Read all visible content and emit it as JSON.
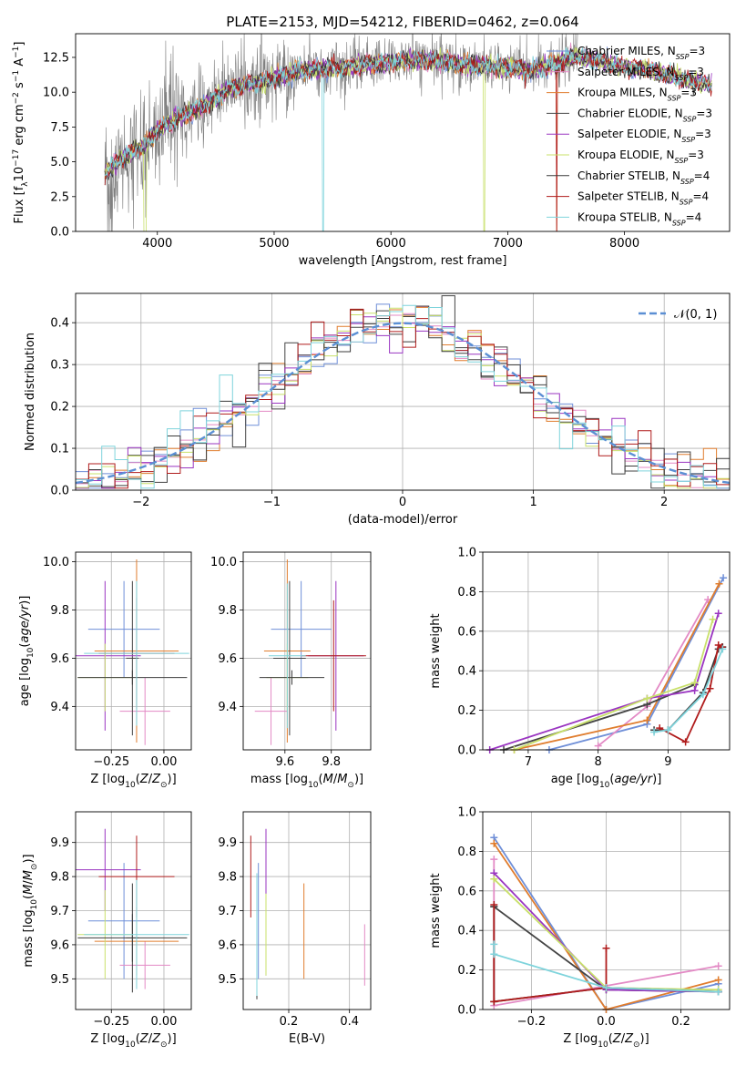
{
  "title": "PLATE=2153, MJD=54212, FIBERID=0462, z=0.064",
  "colors": {
    "ChabrierMILES": "#6f8fd8",
    "SalpeterMILES": "#e38ac5",
    "KroupaMILES": "#e07d2e",
    "ChabrierELODIE": "#444444",
    "SalpeterELODIE": "#9a35c1",
    "KroupaELODIE": "#c8e06a",
    "ChabrierSTELIB": "#3b3b3b",
    "SalpeterSTELIB": "#b01c1c",
    "KroupaSTELIB": "#7fd4dc",
    "data": "#808080",
    "grid": "#b0b0b0",
    "gauss": "#5b8fd4"
  },
  "labels": {
    "spec_xlabel": "wavelength [Angstrom, rest frame]",
    "spec_ylabel": "Flux [f",
    "hist_xlabel": "(data-model)/error",
    "hist_ylabel": "Normed distribution",
    "gauss_legend": "𝒩(0, 1)",
    "age_ylabel": "age  [log",
    "z_xlabel": "Z [log",
    "mass_xlabel": "mass [log",
    "mw_ylabel": "mass weight",
    "age_xlabel": "age  [log",
    "mass_ylabel": "mass [log",
    "ebv_xlabel": "E(B-V)"
  },
  "legend": [
    {
      "name": "Chabrier MILES",
      "nssp": "3",
      "key": "ChabrierMILES"
    },
    {
      "name": "Salpeter MILES",
      "nssp": "3",
      "key": "SalpeterMILES"
    },
    {
      "name": "Kroupa MILES",
      "nssp": "3",
      "key": "KroupaMILES"
    },
    {
      "name": "Chabrier ELODIE",
      "nssp": "3",
      "key": "ChabrierELODIE"
    },
    {
      "name": "Salpeter ELODIE",
      "nssp": "3",
      "key": "SalpeterELODIE"
    },
    {
      "name": "Kroupa ELODIE",
      "nssp": "3",
      "key": "KroupaELODIE"
    },
    {
      "name": "Chabrier STELIB",
      "nssp": "4",
      "key": "ChabrierSTELIB"
    },
    {
      "name": "Salpeter STELIB",
      "nssp": "4",
      "key": "SalpeterSTELIB"
    },
    {
      "name": "Kroupa STELIB",
      "nssp": "4",
      "key": "KroupaSTELIB"
    }
  ],
  "chart_data": [
    {
      "id": "spectrum",
      "type": "line",
      "xlim": [
        3300,
        8900
      ],
      "ylim": [
        0,
        14.2
      ],
      "xticks": [
        4000,
        5000,
        6000,
        7000,
        8000
      ],
      "yticks": [
        0.0,
        2.5,
        5.0,
        7.5,
        10.0,
        12.5
      ],
      "continuum": [
        [
          3550,
          4.2
        ],
        [
          3700,
          5.3
        ],
        [
          3900,
          6.2
        ],
        [
          4000,
          7.3
        ],
        [
          4200,
          8.2
        ],
        [
          4400,
          9.0
        ],
        [
          4600,
          10.2
        ],
        [
          4800,
          10.6
        ],
        [
          5000,
          11.0
        ],
        [
          5200,
          11.5
        ],
        [
          5400,
          11.7
        ],
        [
          5600,
          11.7
        ],
        [
          5800,
          12.0
        ],
        [
          6000,
          12.2
        ],
        [
          6200,
          12.3
        ],
        [
          6400,
          12.2
        ],
        [
          6600,
          12.0
        ],
        [
          6800,
          11.9
        ],
        [
          7000,
          11.8
        ],
        [
          7200,
          11.6
        ],
        [
          7400,
          12.0
        ],
        [
          7600,
          12.6
        ],
        [
          7800,
          12.2
        ],
        [
          8000,
          11.8
        ],
        [
          8200,
          11.6
        ],
        [
          8400,
          11.2
        ],
        [
          8600,
          10.8
        ],
        [
          8750,
          10.5
        ]
      ],
      "data_range": [
        3550,
        7600
      ],
      "dips": [
        5420,
        6800,
        7420
      ]
    },
    {
      "id": "residuals",
      "type": "histogram",
      "xlim": [
        -2.5,
        2.5
      ],
      "ylim": [
        0,
        0.47
      ],
      "xticks": [
        -2,
        -1,
        0,
        1,
        2
      ],
      "yticks": [
        0.0,
        0.1,
        0.2,
        0.3,
        0.4
      ],
      "bin_width": 0.1
    },
    {
      "id": "age_vs_Z",
      "type": "errorbar",
      "xlim": [
        -0.42,
        0.13
      ],
      "ylim": [
        9.22,
        10.04
      ],
      "xticks": [
        -0.25,
        0.0
      ],
      "yticks": [
        9.4,
        9.6,
        9.8,
        10.0
      ],
      "points": [
        {
          "key": "ChabrierMILES",
          "x": -0.19,
          "xerr": 0.17,
          "y": 9.72,
          "yerr": 0.2
        },
        {
          "key": "SalpeterMILES",
          "x": -0.09,
          "xerr": 0.12,
          "y": 9.38,
          "yerr": 0.14
        },
        {
          "key": "KroupaMILES",
          "x": -0.13,
          "xerr": 0.2,
          "y": 9.63,
          "yerr": 0.38
        },
        {
          "key": "ChabrierELODIE",
          "x": -0.15,
          "xerr": 0.03,
          "y": 9.6,
          "yerr": 0.32
        },
        {
          "key": "SalpeterELODIE",
          "x": -0.28,
          "xerr": 0.17,
          "y": 9.61,
          "yerr": 0.31
        },
        {
          "key": "KroupaELODIE",
          "x": -0.28,
          "xerr": 0.13,
          "y": 9.52,
          "yerr": 0.14
        },
        {
          "key": "ChabrierSTELIB",
          "x": -0.15,
          "xerr": 0.26,
          "y": 9.52,
          "yerr": 0.03
        },
        {
          "key": "SalpeterSTELIB",
          "x": -0.13,
          "xerr": 0.18,
          "y": 9.62,
          "yerr": 0.23
        },
        {
          "key": "KroupaSTELIB",
          "x": -0.13,
          "xerr": 0.25,
          "y": 9.62,
          "yerr": 0.3
        }
      ]
    },
    {
      "id": "age_vs_mass",
      "type": "errorbar",
      "xlim": [
        9.42,
        9.97
      ],
      "ylim": [
        9.22,
        10.04
      ],
      "xticks": [
        9.6,
        9.8
      ],
      "yticks": [
        9.4,
        9.6,
        9.8,
        10.0
      ],
      "points": [
        {
          "key": "ChabrierMILES",
          "x": 9.67,
          "xerr": 0.13,
          "y": 9.72,
          "yerr": 0.2
        },
        {
          "key": "SalpeterMILES",
          "x": 9.54,
          "xerr": 0.07,
          "y": 9.38,
          "yerr": 0.14
        },
        {
          "key": "KroupaMILES",
          "x": 9.61,
          "xerr": 0.1,
          "y": 9.63,
          "yerr": 0.38
        },
        {
          "key": "ChabrierELODIE",
          "x": 9.62,
          "xerr": 0.07,
          "y": 9.6,
          "yerr": 0.32
        },
        {
          "key": "SalpeterELODIE",
          "x": 9.82,
          "xerr": 0.12,
          "y": 9.61,
          "yerr": 0.31
        },
        {
          "key": "KroupaELODIE",
          "x": 9.61,
          "xerr": 0.09,
          "y": 9.52,
          "yerr": 0.14
        },
        {
          "key": "ChabrierSTELIB",
          "x": 9.63,
          "xerr": 0.14,
          "y": 9.52,
          "yerr": 0.03
        },
        {
          "key": "SalpeterSTELIB",
          "x": 9.81,
          "xerr": 0.14,
          "y": 9.61,
          "yerr": 0.23
        },
        {
          "key": "KroupaSTELIB",
          "x": 9.61,
          "xerr": 0.08,
          "y": 9.61,
          "yerr": 0.3
        }
      ]
    },
    {
      "id": "weight_vs_age",
      "type": "line",
      "xlim": [
        6.35,
        9.88
      ],
      "ylim": [
        0,
        1.0
      ],
      "xticks": [
        7,
        8,
        9
      ],
      "yticks": [
        0.0,
        0.2,
        0.4,
        0.6,
        0.8,
        1.0
      ],
      "series": [
        {
          "key": "ChabrierMILES",
          "x": [
            7.3,
            8.7,
            9.79
          ],
          "y": [
            0.0,
            0.13,
            0.87
          ]
        },
        {
          "key": "SalpeterMILES",
          "x": [
            8.0,
            8.7,
            9.57
          ],
          "y": [
            0.02,
            0.22,
            0.76
          ]
        },
        {
          "key": "KroupaMILES",
          "x": [
            6.8,
            8.7,
            9.73
          ],
          "y": [
            0.0,
            0.15,
            0.84
          ]
        },
        {
          "key": "ChabrierELODIE",
          "x": [
            6.65,
            8.7,
            9.38
          ],
          "y": [
            0.0,
            0.23,
            0.33
          ]
        },
        {
          "key": "SalpeterELODIE",
          "x": [
            6.45,
            8.7,
            9.38,
            9.72
          ],
          "y": [
            0.0,
            0.26,
            0.3,
            0.69
          ]
        },
        {
          "key": "KroupaELODIE",
          "x": [
            6.8,
            8.7,
            9.38,
            9.64
          ],
          "y": [
            0.0,
            0.26,
            0.34,
            0.66
          ]
        },
        {
          "key": "ChabrierSTELIB",
          "x": [
            8.8,
            9.0,
            9.5,
            9.72,
            9.78
          ],
          "y": [
            0.1,
            0.1,
            0.29,
            0.51,
            0.52
          ]
        },
        {
          "key": "SalpeterSTELIB",
          "x": [
            8.88,
            9.25,
            9.6,
            9.72,
            9.77
          ],
          "y": [
            0.11,
            0.04,
            0.31,
            0.53,
            0.52
          ]
        },
        {
          "key": "KroupaSTELIB",
          "x": [
            8.8,
            9.0,
            9.5,
            9.78
          ],
          "y": [
            0.09,
            0.1,
            0.28,
            0.51
          ]
        }
      ]
    },
    {
      "id": "mass_vs_Z",
      "type": "errorbar",
      "xlim": [
        -0.42,
        0.13
      ],
      "ylim": [
        9.41,
        9.99
      ],
      "xticks": [
        -0.25,
        0.0
      ],
      "yticks": [
        9.5,
        9.6,
        9.7,
        9.8,
        9.9
      ],
      "points": [
        {
          "key": "ChabrierMILES",
          "x": -0.19,
          "xerr": 0.17,
          "y": 9.67,
          "yerr": 0.17
        },
        {
          "key": "SalpeterMILES",
          "x": -0.09,
          "xerr": 0.12,
          "y": 9.54,
          "yerr": 0.07
        },
        {
          "key": "KroupaMILES",
          "x": -0.13,
          "xerr": 0.2,
          "y": 9.61,
          "yerr": 0.1
        },
        {
          "key": "ChabrierELODIE",
          "x": -0.15,
          "xerr": 0.03,
          "y": 9.62,
          "yerr": 0.07
        },
        {
          "key": "SalpeterELODIE",
          "x": -0.28,
          "xerr": 0.17,
          "y": 9.82,
          "yerr": 0.12
        },
        {
          "key": "KroupaELODIE",
          "x": -0.28,
          "xerr": 0.13,
          "y": 9.63,
          "yerr": 0.13
        },
        {
          "key": "ChabrierSTELIB",
          "x": -0.15,
          "xerr": 0.26,
          "y": 9.62,
          "yerr": 0.16
        },
        {
          "key": "SalpeterSTELIB",
          "x": -0.13,
          "xerr": 0.18,
          "y": 9.8,
          "yerr": 0.12
        },
        {
          "key": "KroupaSTELIB",
          "x": -0.13,
          "xerr": 0.25,
          "y": 9.63,
          "yerr": 0.16
        }
      ]
    },
    {
      "id": "mass_vs_ebv",
      "type": "errorbar",
      "xlim": [
        0.05,
        0.47
      ],
      "ylim": [
        9.41,
        9.99
      ],
      "xticks": [
        0.2,
        0.4
      ],
      "yticks": [
        9.5,
        9.6,
        9.7,
        9.8,
        9.9
      ],
      "points": [
        {
          "key": "ChabrierMILES",
          "x": 0.1,
          "xerr": 0,
          "y": 9.67,
          "yerr": 0.17
        },
        {
          "key": "SalpeterMILES",
          "x": 0.45,
          "xerr": 0,
          "y": 9.57,
          "yerr": 0.09
        },
        {
          "key": "KroupaMILES",
          "x": 0.25,
          "xerr": 0,
          "y": 9.64,
          "yerr": 0.14
        },
        {
          "key": "ChabrierELODIE",
          "x": 0.125,
          "xerr": 0,
          "y": 9.62,
          "yerr": 0.11
        },
        {
          "key": "SalpeterELODIE",
          "x": 0.125,
          "xerr": 0,
          "y": 9.82,
          "yerr": 0.12
        },
        {
          "key": "KroupaELODIE",
          "x": 0.125,
          "xerr": 0,
          "y": 9.63,
          "yerr": 0.12
        },
        {
          "key": "ChabrierSTELIB",
          "x": 0.095,
          "xerr": 0,
          "y": 9.62,
          "yerr": 0.18
        },
        {
          "key": "SalpeterSTELIB",
          "x": 0.075,
          "xerr": 0,
          "y": 9.8,
          "yerr": 0.12
        },
        {
          "key": "KroupaSTELIB",
          "x": 0.095,
          "xerr": 0,
          "y": 9.63,
          "yerr": 0.18
        }
      ]
    },
    {
      "id": "weight_vs_Z",
      "type": "line",
      "xlim": [
        -0.33,
        0.33
      ],
      "ylim": [
        0,
        1.0
      ],
      "xticks": [
        -0.2,
        0.0,
        0.2
      ],
      "yticks": [
        0.0,
        0.2,
        0.4,
        0.6,
        0.8,
        1.0
      ],
      "series": [
        {
          "key": "ChabrierMILES",
          "x": [
            -0.3,
            0.0,
            0.3
          ],
          "y": [
            0.87,
            0.0,
            0.13
          ]
        },
        {
          "key": "SalpeterMILES",
          "x": [
            -0.3,
            -0.3,
            0.3
          ],
          "y": [
            0.76,
            0.02,
            0.22
          ]
        },
        {
          "key": "KroupaMILES",
          "x": [
            -0.3,
            0.0,
            0.3
          ],
          "y": [
            0.84,
            0.0,
            0.15
          ]
        },
        {
          "key": "ChabrierELODIE",
          "x": [
            -0.3,
            0.0,
            0.3
          ],
          "y": [
            0.52,
            0.1,
            0.09
          ]
        },
        {
          "key": "SalpeterELODIE",
          "x": [
            -0.3,
            0.0,
            0.3
          ],
          "y": [
            0.69,
            0.1,
            0.09
          ]
        },
        {
          "key": "KroupaELODIE",
          "x": [
            -0.3,
            0.0,
            0.3
          ],
          "y": [
            0.66,
            0.11,
            0.1
          ]
        },
        {
          "key": "ChabrierSTELIB",
          "x": [
            -0.3,
            -0.3,
            0.0,
            0.3
          ],
          "y": [
            0.52,
            0.04,
            0.11,
            0.09
          ]
        },
        {
          "key": "SalpeterSTELIB",
          "x": [
            -0.3,
            -0.3,
            0.0,
            0.0
          ],
          "y": [
            0.53,
            0.04,
            0.11,
            0.31
          ]
        },
        {
          "key": "KroupaSTELIB",
          "x": [
            -0.3,
            -0.3,
            0.0,
            0.3
          ],
          "y": [
            0.33,
            0.28,
            0.11,
            0.09
          ]
        }
      ]
    }
  ]
}
